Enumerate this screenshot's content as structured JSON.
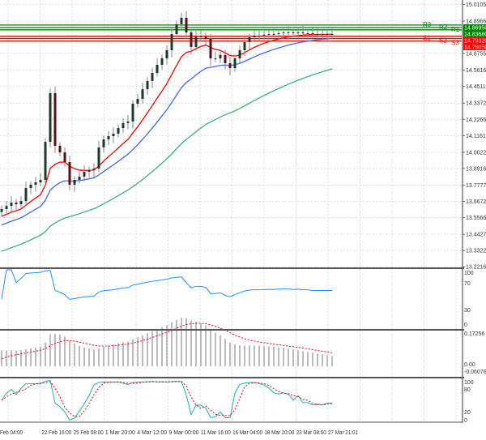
{
  "chart_data": {
    "type": "candlestick",
    "price_axis": {
      "ticks": [
        "15.01055",
        "14.89665",
        "14.67555",
        "14.56165",
        "14.45110",
        "14.33720",
        "14.22665",
        "14.11610",
        "14.00220",
        "13.89165",
        "13.77775",
        "13.66720",
        "13.55665",
        "13.44275",
        "13.33220",
        "13.22165"
      ],
      "range": [
        13.22165,
        15.01055
      ]
    },
    "time_axis": {
      "ticks": [
        "Feb 04:00",
        "22 Feb 16:00",
        "25 Feb 08:00",
        "1 Mar 20:00",
        "4 Mar 12:00",
        "9 Mar 00:00",
        "11 Mar 16:00",
        "16 Mar 04:00",
        "18 Mar 20:00",
        "23 Mar 08:00",
        "27 Mar 21:01"
      ]
    },
    "closes": [
      13.615,
      13.636,
      13.659,
      13.648,
      13.67,
      13.758,
      13.781,
      13.797,
      13.814,
      14.073,
      14.405,
      14.046,
      14.001,
      13.935,
      13.781,
      13.814,
      13.836,
      13.869,
      13.88,
      13.891,
      14.035,
      14.09,
      14.112,
      14.129,
      14.167,
      14.201,
      14.212,
      14.333,
      14.366,
      14.432,
      14.488,
      14.543,
      14.598,
      14.642,
      14.698,
      14.808,
      14.875,
      14.919,
      14.819,
      14.72,
      14.792,
      14.792,
      14.775,
      14.642,
      14.642,
      14.665,
      14.609,
      14.576,
      14.642,
      14.698,
      14.753,
      14.786,
      14.797,
      14.797,
      14.803,
      14.808,
      14.808,
      14.814,
      14.819,
      14.819,
      14.814,
      14.819,
      14.814,
      14.814,
      14.808,
      14.808,
      14.808,
      14.808,
      14.808
    ],
    "moving_averages": [
      {
        "color": "#ff0000",
        "period": 10
      },
      {
        "color": "#4169e1",
        "period": 20
      },
      {
        "color": "#3cb371",
        "period": 50
      }
    ],
    "pivot_levels": [
      {
        "label": "R3",
        "price": 14.8695,
        "color": "#008000"
      },
      {
        "label": "R2",
        "price": 14.8532,
        "color": "#008000"
      },
      {
        "label": "R1",
        "price": 14.8368,
        "color": "#008000"
      },
      {
        "label": "S1",
        "price": 14.7932,
        "color": "#ff0000"
      },
      {
        "label": "S2",
        "price": 14.7769,
        "color": "#ff0000"
      },
      {
        "label": "S3",
        "price": 14.7605,
        "color": "#ff0000"
      }
    ],
    "price_boxes": [
      {
        "text": "14.86950",
        "color": "#008000"
      },
      {
        "text": "14.83680",
        "color": "#008000"
      },
      {
        "text": "14.79320",
        "color": "#ff0000"
      },
      {
        "text": "14.76050",
        "color": "#ff0000"
      }
    ],
    "indicators": [
      {
        "type": "line",
        "color": "#1e90ff",
        "ticks": [
          "100",
          "70",
          "30",
          "0"
        ]
      },
      {
        "type": "histogram",
        "signal_color": "#ff0000",
        "ticks": [
          "0.17256",
          "0.00",
          "-0.060765"
        ]
      },
      {
        "type": "oscillator",
        "main_color": "#20b2aa",
        "signal_color": "#ff0000",
        "ticks": [
          "100",
          "80",
          "20",
          "0"
        ]
      }
    ],
    "candle_colors": {
      "up": "#1b3a2a",
      "down": "#5a1010",
      "wick": "#888888"
    },
    "grid": true
  }
}
